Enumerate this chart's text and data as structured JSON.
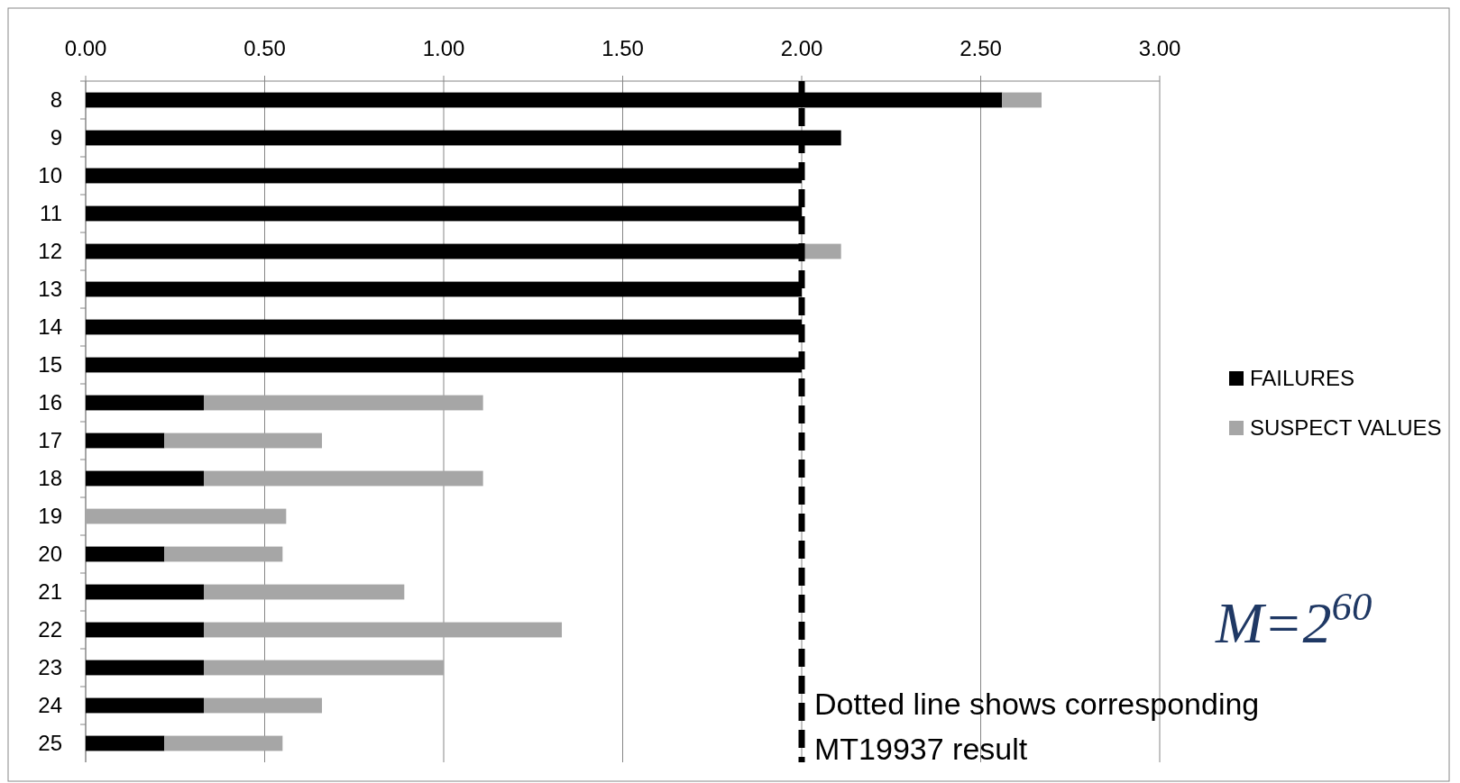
{
  "chart_data": {
    "type": "bar",
    "orientation": "horizontal",
    "stacked": true,
    "categories": [
      "8",
      "9",
      "10",
      "11",
      "12",
      "13",
      "14",
      "15",
      "16",
      "17",
      "18",
      "19",
      "20",
      "21",
      "22",
      "23",
      "24",
      "25"
    ],
    "series": [
      {
        "name": "FAILURES",
        "color": "#000000",
        "values": [
          2.56,
          2.11,
          2.0,
          2.0,
          2.0,
          2.0,
          2.0,
          2.0,
          0.33,
          0.22,
          0.33,
          0,
          0.22,
          0.33,
          0.33,
          0.33,
          0.33,
          0.22
        ]
      },
      {
        "name": "SUSPECT VALUES",
        "color": "#a6a6a6",
        "values": [
          0.11,
          0,
          0,
          0,
          0.11,
          0,
          0,
          0,
          0.78,
          0.44,
          0.78,
          0.56,
          0.33,
          0.56,
          1.0,
          0.67,
          0.33,
          0.33
        ]
      }
    ],
    "xlim": [
      0,
      3
    ],
    "xticks": [
      {
        "value": 0,
        "label": "0.00"
      },
      {
        "value": 0.5,
        "label": "0.50"
      },
      {
        "value": 1,
        "label": "1.00"
      },
      {
        "value": 1.5,
        "label": "1.50"
      },
      {
        "value": 2,
        "label": "2.00"
      },
      {
        "value": 2.5,
        "label": "2.50"
      },
      {
        "value": 3,
        "label": "3.00"
      }
    ],
    "grid": "x",
    "legend": "right",
    "ref_lines": [
      {
        "axis": "x",
        "value": 2,
        "color": "#000000",
        "line_style": "dashed"
      }
    ],
    "annotations": [
      "Dotted line shows corresponding MT19937 result",
      "M=2$^{60}$"
    ]
  }
}
